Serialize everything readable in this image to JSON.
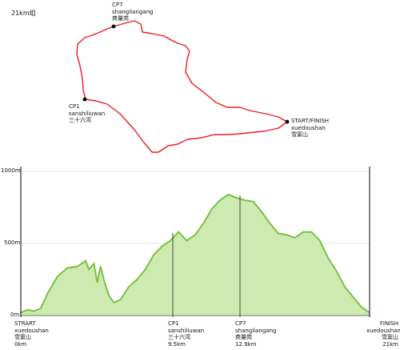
{
  "race_title": "21km组",
  "route": {
    "color": "#ee1c24",
    "checkpoints": [
      {
        "id": "cp7",
        "code": "CP7",
        "name": "shangliangang",
        "name_cn": "商量岗"
      },
      {
        "id": "cp1",
        "code": "CP1",
        "name": "sanshiliuwan",
        "name_cn": "三十六湾"
      },
      {
        "id": "start",
        "code": "START/FINISH",
        "name": "xuedoushan",
        "name_cn": "雪窦山"
      }
    ]
  },
  "profile": {
    "fill_color": "#cdeab0",
    "line_color": "#7ac143",
    "y_ticks": [
      "1000m",
      "500m",
      "0m"
    ],
    "markers": [
      {
        "id": "start",
        "code": "STRART",
        "name": "xuedoushan",
        "name_cn": "雪窦山",
        "dist": "0km"
      },
      {
        "id": "cp1",
        "code": "CP1",
        "name": "sanshiliuwan",
        "name_cn": "三十六湾",
        "dist": "9.5km"
      },
      {
        "id": "cp7",
        "code": "CP7",
        "name": "shangliangang",
        "name_cn": "商量岗",
        "dist": "12.9km"
      },
      {
        "id": "finish",
        "code": "FINISH",
        "name": "xuedoushan",
        "name_cn": "雪窦山",
        "dist": "21km"
      }
    ]
  },
  "chart_data": {
    "type": "area",
    "xlabel": "",
    "ylabel": "",
    "x_unit": "km",
    "y_unit": "m",
    "xlim": [
      0,
      21
    ],
    "ylim": [
      0,
      1000
    ],
    "grid": true,
    "x": [
      0,
      0.4,
      0.8,
      1.2,
      1.6,
      2.2,
      2.8,
      3.4,
      3.9,
      4.1,
      4.4,
      4.6,
      4.8,
      5.0,
      5.3,
      5.6,
      6.0,
      6.5,
      7.0,
      7.5,
      8.0,
      8.5,
      9.0,
      9.5,
      10.0,
      10.5,
      11.0,
      11.5,
      12.0,
      12.5,
      12.9,
      13.5,
      14.0,
      14.5,
      15.0,
      15.5,
      16.0,
      16.5,
      17.0,
      17.5,
      18.0,
      18.5,
      19.0,
      19.5,
      20.0,
      20.5,
      21.0
    ],
    "y": [
      20,
      40,
      30,
      50,
      150,
      270,
      330,
      340,
      380,
      320,
      360,
      230,
      340,
      250,
      140,
      90,
      110,
      200,
      250,
      320,
      420,
      480,
      520,
      580,
      520,
      560,
      640,
      740,
      800,
      840,
      820,
      800,
      790,
      720,
      640,
      570,
      560,
      540,
      580,
      580,
      520,
      400,
      310,
      200,
      130,
      60,
      20
    ]
  }
}
